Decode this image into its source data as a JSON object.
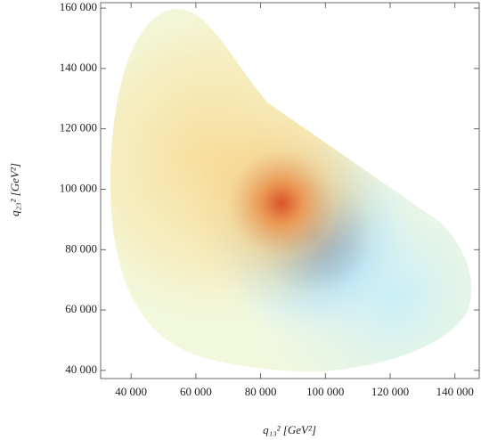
{
  "chart_data": {
    "type": "density",
    "x_label": "q₁₃² [GeV²]",
    "y_label": "q₂₃² [GeV²]",
    "xlim": [
      30600,
      147500
    ],
    "ylim": [
      37300,
      161800
    ],
    "xticks": [
      {
        "value": 40000,
        "label": "40 000"
      },
      {
        "value": 60000,
        "label": "60 000"
      },
      {
        "value": 80000,
        "label": "80 000"
      },
      {
        "value": 100000,
        "label": "100 000"
      },
      {
        "value": 120000,
        "label": "120 000"
      },
      {
        "value": 140000,
        "label": "140 000"
      }
    ],
    "yticks": [
      {
        "value": 40000,
        "label": "40 000"
      },
      {
        "value": 60000,
        "label": "60 000"
      },
      {
        "value": 80000,
        "label": "80 000"
      },
      {
        "value": 100000,
        "label": "100 000"
      },
      {
        "value": 120000,
        "label": "120 000"
      },
      {
        "value": 140000,
        "label": "140 000"
      },
      {
        "value": 160000,
        "label": "160 000"
      }
    ]
  }
}
